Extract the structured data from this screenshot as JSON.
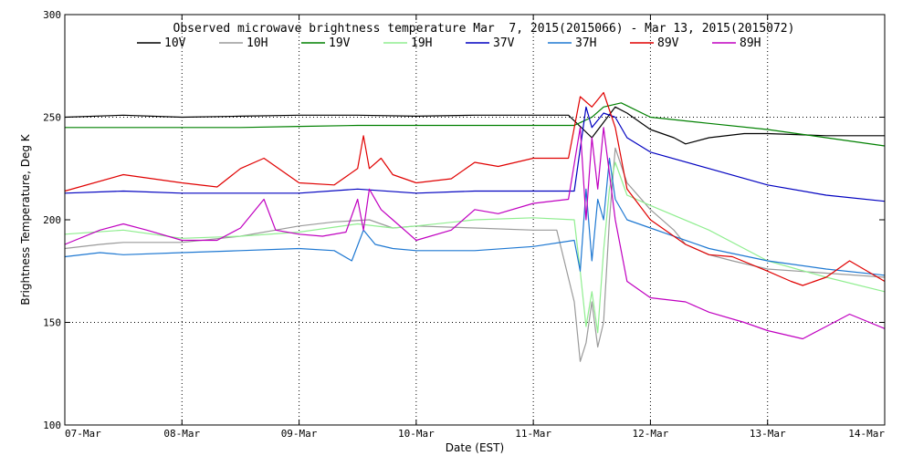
{
  "chart_data": {
    "type": "line",
    "title": "Observed microwave brightness temperature Mar  7, 2015(2015066) - Mar 13, 2015(2015072)",
    "xlabel": "Date (EST)",
    "ylabel": "Brightness Temperature, Deg K",
    "ylim": [
      100,
      300
    ],
    "xlim": [
      0,
      7
    ],
    "yticks": [
      100,
      150,
      200,
      250,
      300
    ],
    "ytick_labels": [
      "100",
      "150",
      "200",
      "250",
      "300"
    ],
    "grid_y": [
      150,
      250
    ],
    "grid_x": [
      1,
      2,
      3,
      4,
      5,
      6
    ],
    "categories": [
      "07-Mar",
      "08-Mar",
      "09-Mar",
      "10-Mar",
      "11-Mar",
      "12-Mar",
      "13-Mar",
      "14-Mar"
    ],
    "x_unit": "days since 07-Mar 00:00",
    "legend_position": "top",
    "series": [
      {
        "name": "10V",
        "color": "#000000",
        "x": [
          0,
          0.5,
          1,
          1.5,
          2,
          2.5,
          3,
          3.5,
          4,
          4.3,
          4.5,
          4.7,
          4.8,
          5,
          5.2,
          5.3,
          5.5,
          5.8,
          6,
          6.5,
          7
        ],
        "y": [
          250,
          251,
          250,
          250.5,
          251,
          251,
          250.5,
          251,
          251,
          251,
          240,
          255,
          252,
          244,
          240,
          237,
          240,
          242,
          242,
          241,
          241
        ]
      },
      {
        "name": "10H",
        "color": "#9a9a9a",
        "x": [
          0,
          0.3,
          0.5,
          1,
          1.5,
          2,
          2.3,
          2.6,
          2.8,
          3,
          3.5,
          4,
          4.2,
          4.35,
          4.4,
          4.45,
          4.5,
          4.55,
          4.6,
          4.65,
          4.7,
          4.8,
          5,
          5.2,
          5.3,
          5.5,
          5.7,
          6,
          6.5,
          7
        ],
        "y": [
          186,
          188,
          189,
          189,
          192,
          197,
          199,
          200,
          196,
          197,
          196,
          195,
          195,
          160,
          131,
          140,
          160,
          138,
          150,
          200,
          235,
          218,
          205,
          195,
          188,
          183,
          180,
          176,
          174,
          172
        ]
      },
      {
        "name": "19V",
        "color": "#008000",
        "x": [
          0,
          0.5,
          1,
          1.5,
          2,
          2.5,
          3,
          3.5,
          4,
          4.35,
          4.5,
          4.6,
          4.75,
          5,
          5.5,
          6,
          6.5,
          7
        ],
        "y": [
          245,
          245,
          245,
          245,
          245.5,
          246,
          246,
          246,
          246,
          246,
          250,
          255,
          257,
          250,
          247,
          244,
          240,
          236
        ]
      },
      {
        "name": "19H",
        "color": "#90ee90",
        "x": [
          0,
          0.5,
          1,
          1.5,
          2,
          2.5,
          2.8,
          3,
          3.5,
          4,
          4.35,
          4.4,
          4.45,
          4.5,
          4.55,
          4.6,
          4.65,
          4.7,
          4.8,
          5,
          5.5,
          6,
          6.5,
          7
        ],
        "y": [
          193,
          195,
          191,
          192,
          194,
          198,
          196,
          197,
          200,
          201,
          200,
          175,
          148,
          165,
          145,
          185,
          215,
          228,
          212,
          207,
          195,
          180,
          172,
          165
        ]
      },
      {
        "name": "37V",
        "color": "#0000c0",
        "x": [
          0,
          0.5,
          1,
          1.5,
          2,
          2.5,
          3,
          3.5,
          4,
          4.35,
          4.45,
          4.5,
          4.6,
          4.7,
          4.8,
          5,
          5.5,
          6,
          6.5,
          7
        ],
        "y": [
          213,
          214,
          213,
          213,
          213,
          215,
          213,
          214,
          214,
          214,
          255,
          245,
          252,
          250,
          240,
          233,
          225,
          217,
          212,
          209
        ]
      },
      {
        "name": "37H",
        "color": "#1e78d2",
        "x": [
          0,
          0.3,
          0.5,
          1,
          1.5,
          2,
          2.3,
          2.45,
          2.55,
          2.65,
          2.8,
          3,
          3.5,
          4,
          4.35,
          4.4,
          4.45,
          4.5,
          4.55,
          4.6,
          4.65,
          4.7,
          4.8,
          5,
          5.5,
          6,
          6.5,
          7
        ],
        "y": [
          182,
          184,
          183,
          184,
          185,
          186,
          185,
          180,
          195,
          188,
          186,
          185,
          185,
          187,
          190,
          175,
          215,
          180,
          210,
          200,
          230,
          210,
          200,
          196,
          186,
          180,
          176,
          173
        ]
      },
      {
        "name": "89V",
        "color": "#e00000",
        "x": [
          0,
          0.5,
          1,
          1.3,
          1.5,
          1.7,
          2,
          2.3,
          2.5,
          2.55,
          2.6,
          2.7,
          2.8,
          3,
          3.3,
          3.5,
          3.7,
          4,
          4.3,
          4.4,
          4.5,
          4.6,
          4.7,
          4.8,
          5,
          5.3,
          5.5,
          5.7,
          6,
          6.2,
          6.3,
          6.5,
          6.7,
          7
        ],
        "y": [
          214,
          222,
          218,
          216,
          225,
          230,
          218,
          217,
          225,
          241,
          225,
          230,
          222,
          218,
          220,
          228,
          226,
          230,
          230,
          260,
          255,
          262,
          245,
          215,
          200,
          188,
          183,
          182,
          175,
          170,
          168,
          172,
          180,
          170
        ]
      },
      {
        "name": "89H",
        "color": "#c000c0",
        "x": [
          0,
          0.3,
          0.5,
          0.7,
          1,
          1.3,
          1.5,
          1.7,
          1.8,
          2,
          2.2,
          2.4,
          2.5,
          2.55,
          2.6,
          2.7,
          2.8,
          3,
          3.3,
          3.5,
          3.7,
          4,
          4.3,
          4.4,
          4.45,
          4.5,
          4.55,
          4.6,
          4.7,
          4.8,
          5,
          5.3,
          5.5,
          5.8,
          6,
          6.3,
          6.5,
          6.7,
          7
        ],
        "y": [
          188,
          195,
          198,
          195,
          190,
          190,
          196,
          210,
          195,
          193,
          192,
          194,
          210,
          195,
          215,
          205,
          200,
          190,
          195,
          205,
          203,
          208,
          210,
          245,
          200,
          240,
          215,
          245,
          200,
          170,
          162,
          160,
          155,
          150,
          146,
          142,
          148,
          154,
          147
        ]
      }
    ]
  }
}
